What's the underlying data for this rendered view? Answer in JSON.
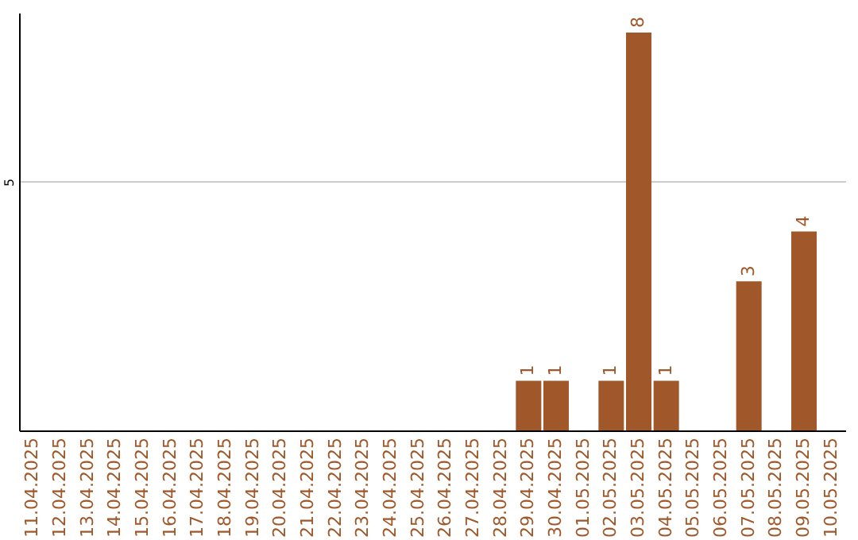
{
  "chart_data": {
    "type": "bar",
    "categories": [
      "11.04.2025",
      "12.04.2025",
      "13.04.2025",
      "14.04.2025",
      "15.04.2025",
      "16.04.2025",
      "17.04.2025",
      "18.04.2025",
      "19.04.2025",
      "20.04.2025",
      "21.04.2025",
      "22.04.2025",
      "23.04.2025",
      "24.04.2025",
      "25.04.2025",
      "26.04.2025",
      "27.04.2025",
      "28.04.2025",
      "29.04.2025",
      "30.04.2025",
      "01.05.2025",
      "02.05.2025",
      "03.05.2025",
      "04.05.2025",
      "05.05.2025",
      "06.05.2025",
      "07.05.2025",
      "08.05.2025",
      "09.05.2025",
      "10.05.2025"
    ],
    "values": [
      null,
      null,
      null,
      null,
      null,
      null,
      null,
      null,
      null,
      null,
      null,
      null,
      null,
      null,
      null,
      null,
      null,
      null,
      1,
      1,
      null,
      1,
      8,
      1,
      null,
      null,
      3,
      null,
      4,
      null
    ],
    "data_labels": true,
    "color": "#a0572a",
    "ylim": [
      0,
      8.4
    ],
    "yticks": [
      5
    ],
    "grid": "y"
  }
}
